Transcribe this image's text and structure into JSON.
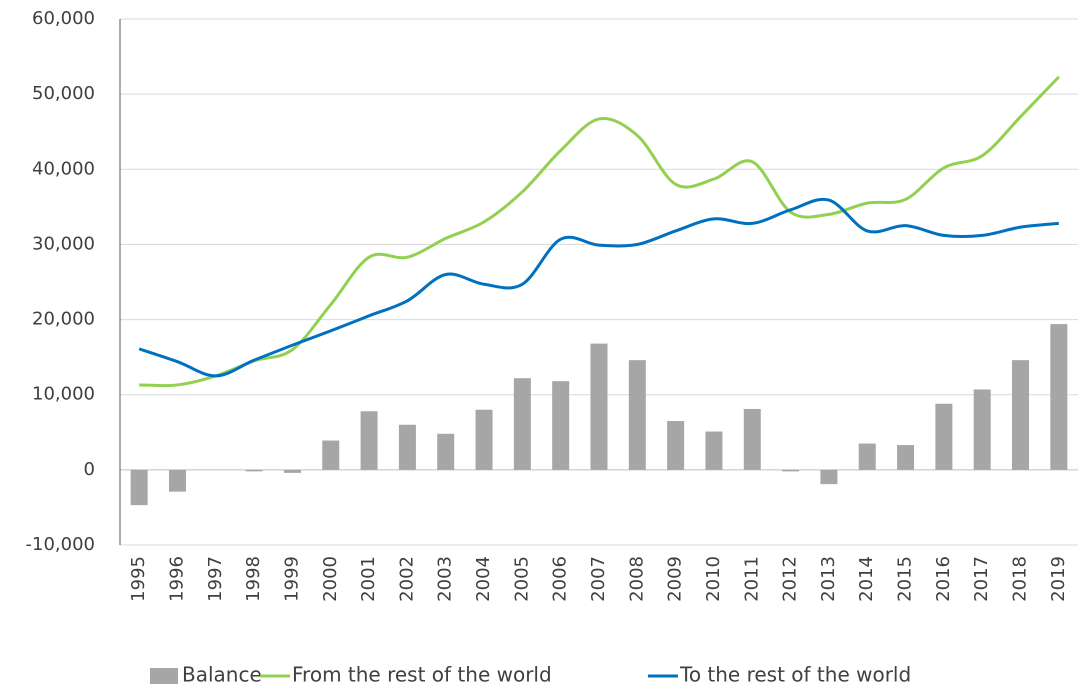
{
  "chart_data": {
    "type": "bar_line",
    "categories": [
      "1995",
      "1996",
      "1997",
      "1998",
      "1999",
      "2000",
      "2001",
      "2002",
      "2003",
      "2004",
      "2005",
      "2006",
      "2007",
      "2008",
      "2009",
      "2010",
      "2011",
      "2012",
      "2013",
      "2014",
      "2015",
      "2016",
      "2017",
      "2018",
      "2019"
    ],
    "series": [
      {
        "name": "Balance",
        "type": "bar",
        "color": "#a6a6a6",
        "values": [
          -4700,
          -2900,
          0,
          -200,
          -400,
          3900,
          7800,
          6000,
          4800,
          8000,
          12200,
          11800,
          16800,
          14600,
          6500,
          5100,
          8100,
          -200,
          -1900,
          3500,
          3300,
          8800,
          10700,
          14600,
          19400
        ]
      },
      {
        "name": "From the rest of the world",
        "type": "line",
        "color": "#92d050",
        "values": [
          11300,
          11300,
          12500,
          14500,
          16000,
          22000,
          28300,
          28300,
          30800,
          33000,
          37000,
          42500,
          46700,
          44500,
          38000,
          38700,
          41000,
          34300,
          34000,
          35500,
          36000,
          40200,
          41800,
          47000,
          52300
        ]
      },
      {
        "name": "To the rest of the world",
        "type": "line",
        "color": "#0070c0",
        "values": [
          16100,
          14400,
          12500,
          14600,
          16600,
          18500,
          20500,
          22500,
          26000,
          24700,
          24700,
          30700,
          29900,
          30000,
          31800,
          33400,
          32800,
          34600,
          35900,
          31800,
          32500,
          31200,
          31200,
          32300,
          32800
        ]
      }
    ],
    "ylim": [
      -10000,
      60000
    ],
    "yticks": [
      {
        "value": -10000,
        "label": "-10,000"
      },
      0,
      {
        "value": 10000,
        "label": "10,000"
      },
      {
        "value": 20000,
        "label": "20,000"
      },
      {
        "value": 30000,
        "label": "30,000"
      },
      {
        "value": 40000,
        "label": "40,000"
      },
      {
        "value": 50000,
        "label": "50,000"
      },
      {
        "value": 60000,
        "label": "60,000"
      }
    ],
    "grid": true,
    "legend": "bottom"
  }
}
